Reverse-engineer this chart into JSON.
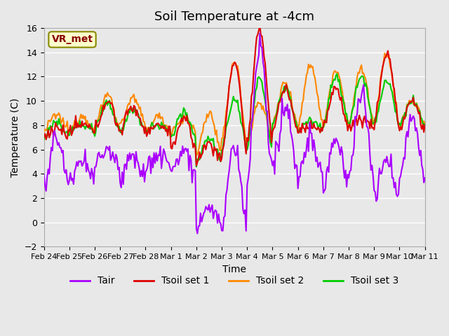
{
  "title": "Soil Temperature at -4cm",
  "xlabel": "Time",
  "ylabel": "Temperature (C)",
  "ylim": [
    -2,
    16
  ],
  "yticks": [
    -2,
    0,
    2,
    4,
    6,
    8,
    10,
    12,
    14,
    16
  ],
  "xtick_labels": [
    "Feb 24",
    "Feb 25",
    "Feb 26",
    "Feb 27",
    "Feb 28",
    "Mar 1",
    "Mar 2",
    "Mar 3",
    "Mar 4",
    "Mar 5",
    "Mar 6",
    "Mar 7",
    "Mar 8",
    "Mar 9",
    "Mar 10",
    "Mar 11"
  ],
  "background_color": "#e8e8e8",
  "plot_bg_color": "#e8e8e8",
  "grid_color": "#ffffff",
  "line_colors": {
    "Tair": "#aa00ff",
    "Tsoil_set1": "#dd0000",
    "Tsoil_set2": "#ff8800",
    "Tsoil_set3": "#00cc00"
  },
  "line_width": 1.5,
  "annotation_text": "VR_met",
  "annotation_color": "#880000",
  "annotation_bg": "#ffffcc",
  "annotation_border": "#888800"
}
